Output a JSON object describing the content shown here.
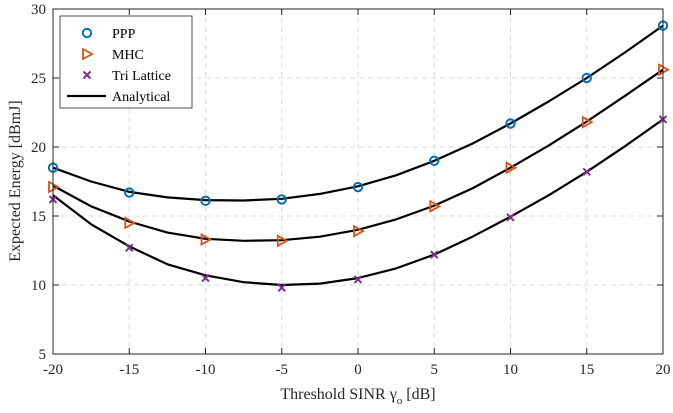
{
  "chart_data": {
    "type": "line",
    "title": "",
    "xlabel_main": "Threshold SINR ",
    "xlabel_symbol": "γ",
    "xlabel_subscript": "o",
    "xlabel_unit": " [dB]",
    "ylabel": "Expected Energy [dBmJ]",
    "xlim": [
      -20,
      20
    ],
    "ylim": [
      5,
      30
    ],
    "x_ticks": [
      -20,
      -15,
      -10,
      -5,
      0,
      5,
      10,
      15,
      20
    ],
    "y_ticks": [
      5,
      10,
      15,
      20,
      25,
      30
    ],
    "grid": true,
    "legend_position": "top-left",
    "series": [
      {
        "name": "PPP",
        "marker": "circle",
        "color": "#0072BD",
        "x": [
          -20,
          -15,
          -10,
          -5,
          0,
          5,
          10,
          15,
          20
        ],
        "y": [
          18.5,
          16.7,
          16.1,
          16.2,
          17.1,
          19.0,
          21.7,
          25.0,
          28.8
        ]
      },
      {
        "name": "MHC",
        "marker": "triangle-right",
        "color": "#D95319",
        "x": [
          -20,
          -15,
          -10,
          -5,
          0,
          5,
          10,
          15,
          20
        ],
        "y": [
          17.1,
          14.5,
          13.3,
          13.2,
          13.9,
          15.7,
          18.5,
          21.8,
          25.6
        ]
      },
      {
        "name": "Tri Lattice",
        "marker": "x",
        "color": "#7E2F8E",
        "x": [
          -20,
          -15,
          -10,
          -5,
          0,
          5,
          10,
          15,
          20
        ],
        "y": [
          16.2,
          12.7,
          10.5,
          9.8,
          10.4,
          12.2,
          14.9,
          18.2,
          22.0
        ]
      }
    ],
    "analytical": {
      "name": "Analytical",
      "color": "#000000",
      "curves": [
        {
          "x": [
            -20,
            -17.5,
            -15,
            -12.5,
            -10,
            -7.5,
            -5,
            -2.5,
            0,
            2.5,
            5,
            7.5,
            10,
            12.5,
            15,
            17.5,
            20
          ],
          "y": [
            18.5,
            17.5,
            16.75,
            16.35,
            16.15,
            16.12,
            16.25,
            16.6,
            17.15,
            17.95,
            19.0,
            20.25,
            21.7,
            23.3,
            25.0,
            26.85,
            28.8
          ]
        },
        {
          "x": [
            -20,
            -17.5,
            -15,
            -12.5,
            -10,
            -7.5,
            -5,
            -2.5,
            0,
            2.5,
            5,
            7.5,
            10,
            12.5,
            15,
            17.5,
            20
          ],
          "y": [
            17.2,
            15.7,
            14.6,
            13.8,
            13.35,
            13.2,
            13.25,
            13.5,
            14.0,
            14.75,
            15.75,
            17.0,
            18.5,
            20.1,
            21.85,
            23.7,
            25.6
          ]
        },
        {
          "x": [
            -20,
            -17.5,
            -15,
            -12.5,
            -10,
            -7.5,
            -5,
            -2.5,
            0,
            2.5,
            5,
            7.5,
            10,
            12.5,
            15,
            17.5,
            20
          ],
          "y": [
            16.5,
            14.4,
            12.8,
            11.5,
            10.7,
            10.2,
            10.0,
            10.1,
            10.5,
            11.2,
            12.2,
            13.5,
            14.95,
            16.5,
            18.2,
            20.05,
            22.0
          ]
        }
      ]
    }
  }
}
